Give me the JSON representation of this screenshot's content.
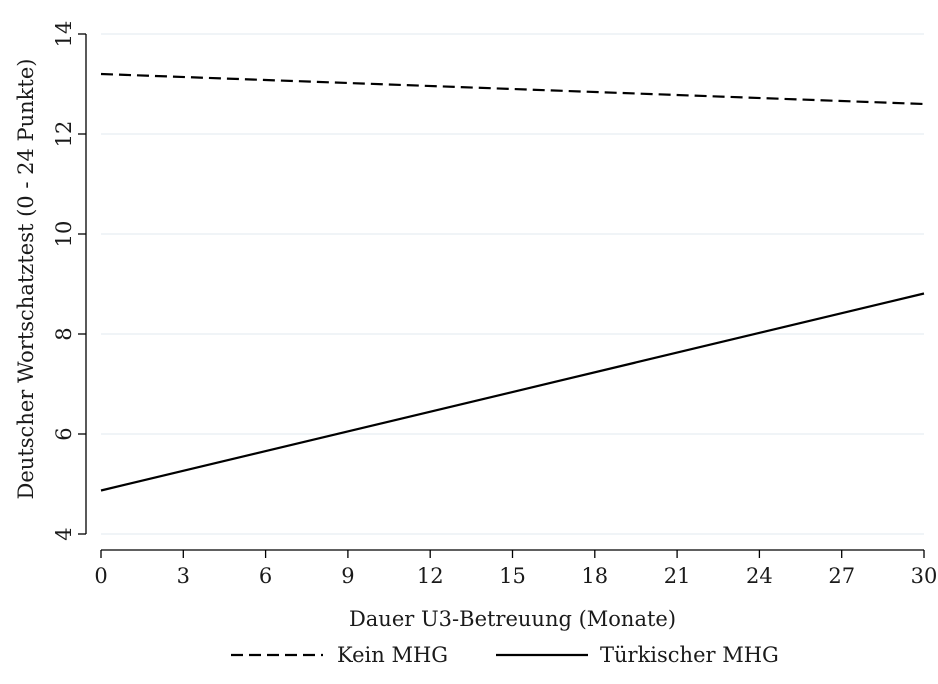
{
  "chart_data": {
    "type": "line",
    "title": "",
    "xlabel": "Dauer U3-Betreuung (Monate)",
    "ylabel": "Deutscher Wortschatztest (0 - 24 Punkte)",
    "xlim": [
      0,
      30
    ],
    "ylim": [
      4,
      14
    ],
    "x_ticks": [
      0,
      3,
      6,
      9,
      12,
      15,
      18,
      21,
      24,
      27,
      30
    ],
    "x_tick_labels": [
      "0",
      "3",
      "6",
      "9",
      "12",
      "15",
      "18",
      "21",
      "24",
      "27",
      "30"
    ],
    "y_ticks": [
      4,
      6,
      8,
      10,
      12,
      14
    ],
    "y_tick_labels": [
      "4",
      "6",
      "8",
      "10",
      "12",
      "14"
    ],
    "grid": true,
    "legend_position": "bottom",
    "series": [
      {
        "name": "Kein MHG",
        "style": "dashed",
        "color": "#000000",
        "x": [
          0,
          30
        ],
        "y": [
          13.2,
          12.6
        ]
      },
      {
        "name": "Türkischer MHG",
        "style": "solid",
        "color": "#000000",
        "x": [
          0,
          30
        ],
        "y": [
          4.87,
          8.81
        ]
      }
    ],
    "gridline_color": "#e6eef2"
  }
}
